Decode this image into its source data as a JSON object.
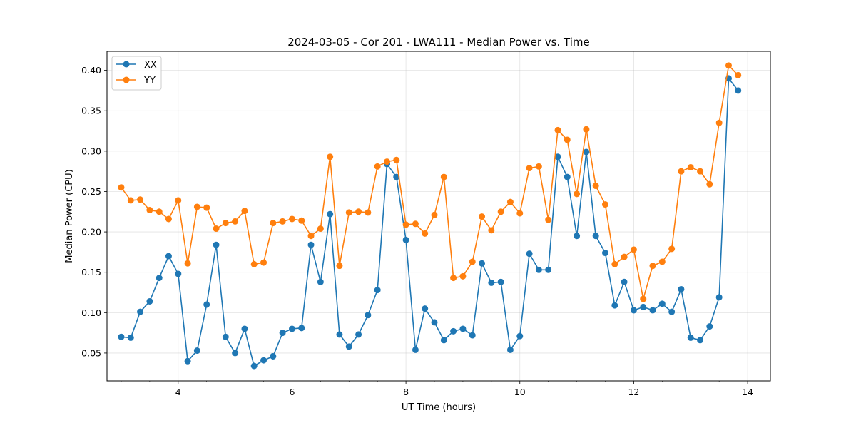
{
  "chart_data": {
    "type": "line",
    "title": "2024-03-05 - Cor 201 - LWA111 - Median Power vs. Time",
    "xlabel": "UT Time (hours)",
    "ylabel": "Median Power (CPU)",
    "xlim": [
      2.75,
      14.4
    ],
    "ylim": [
      0.0155,
      0.4235
    ],
    "xticks": [
      4,
      6,
      8,
      10,
      12,
      14
    ],
    "xtick_labels": [
      "4",
      "6",
      "8",
      "10",
      "12",
      "14"
    ],
    "yticks": [
      0.05,
      0.1,
      0.15,
      0.2,
      0.25,
      0.3,
      0.35,
      0.4
    ],
    "ytick_labels": [
      "0.05",
      "0.10",
      "0.15",
      "0.20",
      "0.25",
      "0.30",
      "0.35",
      "0.40"
    ],
    "grid": true,
    "legend_position": "top-left",
    "x": [
      3.0,
      3.167,
      3.333,
      3.5,
      3.667,
      3.833,
      4.0,
      4.167,
      4.333,
      4.5,
      4.667,
      4.833,
      5.0,
      5.167,
      5.333,
      5.5,
      5.667,
      5.833,
      6.0,
      6.167,
      6.333,
      6.5,
      6.667,
      6.833,
      7.0,
      7.167,
      7.333,
      7.5,
      7.667,
      7.833,
      8.0,
      8.167,
      8.333,
      8.5,
      8.667,
      8.833,
      9.0,
      9.167,
      9.333,
      9.5,
      9.667,
      9.833,
      10.0,
      10.167,
      10.333,
      10.5,
      10.667,
      10.833,
      11.0,
      11.167,
      11.333,
      11.5,
      11.667,
      11.833,
      12.0,
      12.167,
      12.333,
      12.5,
      12.667,
      12.833,
      13.0,
      13.167,
      13.333,
      13.5,
      13.667,
      13.833
    ],
    "series": [
      {
        "name": "XX",
        "color": "#1f77b4",
        "values": [
          0.07,
          0.069,
          0.101,
          0.114,
          0.143,
          0.17,
          0.148,
          0.04,
          0.053,
          0.11,
          0.184,
          0.07,
          0.05,
          0.08,
          0.034,
          0.041,
          0.046,
          0.075,
          0.08,
          0.081,
          0.184,
          0.138,
          0.222,
          0.073,
          0.058,
          0.073,
          0.097,
          0.128,
          0.284,
          0.268,
          0.19,
          0.054,
          0.105,
          0.088,
          0.066,
          0.077,
          0.08,
          0.072,
          0.161,
          0.137,
          0.138,
          0.054,
          0.071,
          0.173,
          0.153,
          0.153,
          0.293,
          0.268,
          0.195,
          0.299,
          0.195,
          0.174,
          0.109,
          0.138,
          0.103,
          0.107,
          0.103,
          0.111,
          0.101,
          0.129,
          0.069,
          0.066,
          0.083,
          0.119,
          0.39,
          0.375
        ]
      },
      {
        "name": "YY",
        "color": "#ff7f0e",
        "values": [
          0.255,
          0.239,
          0.24,
          0.227,
          0.225,
          0.216,
          0.239,
          0.161,
          0.231,
          0.23,
          0.204,
          0.211,
          0.213,
          0.226,
          0.16,
          0.162,
          0.211,
          0.213,
          0.216,
          0.214,
          0.195,
          0.204,
          0.293,
          0.158,
          0.224,
          0.225,
          0.224,
          0.281,
          0.287,
          0.289,
          0.209,
          0.21,
          0.198,
          0.221,
          0.268,
          0.143,
          0.145,
          0.163,
          0.219,
          0.202,
          0.225,
          0.237,
          0.223,
          0.279,
          0.281,
          0.215,
          0.326,
          0.314,
          0.247,
          0.327,
          0.257,
          0.234,
          0.16,
          0.169,
          0.178,
          0.117,
          0.158,
          0.163,
          0.179,
          0.275,
          0.28,
          0.275,
          0.259,
          0.335,
          0.406,
          0.394
        ]
      }
    ]
  }
}
